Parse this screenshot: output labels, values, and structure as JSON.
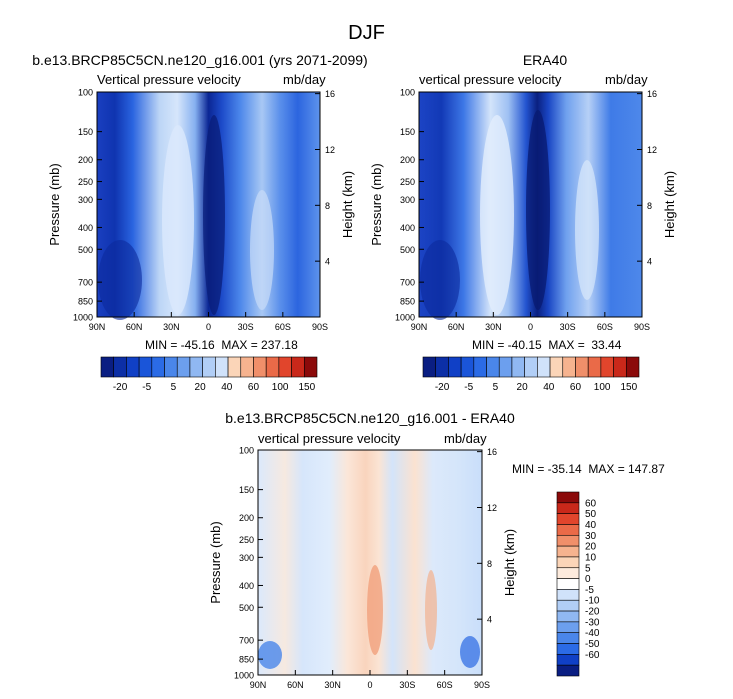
{
  "page": {
    "title": "DJF"
  },
  "colors": {
    "neg_scale_abs": [
      "#0a1e82",
      "#0c2fa6",
      "#1040c6",
      "#1a55d9",
      "#2b6be6",
      "#4a86ea",
      "#6c9fee",
      "#90b8f2",
      "#b1cef6",
      "#d0e2fa",
      "#ffeedd"
    ],
    "pos_scale_abs": [
      "#fbd5b8",
      "#f6b38f",
      "#f08f6a",
      "#ea6a48",
      "#e1452c",
      "#c9281a",
      "#8b0a0a"
    ],
    "diff_scale": [
      "#8b0a0a",
      "#c9281a",
      "#e1452c",
      "#ea6a48",
      "#f08f6a",
      "#f6b38f",
      "#fbd5b8",
      "#fdebdd",
      "#ffffff",
      "#d0e2fa",
      "#b1cef6",
      "#90b8f2",
      "#6c9fee",
      "#4a86ea",
      "#2b6be6",
      "#1040c6",
      "#0a1e82"
    ]
  },
  "chart_data": [
    {
      "type": "heatmap",
      "title": "b.e13.BRCP85C5CN.ne120_g16.001 (yrs 2071-2099)",
      "left_label": "Vertical pressure velocity",
      "right_label": "mb/day",
      "ylabel": "Pressure (mb)",
      "y2label": "Height (km)",
      "x_ticks": [
        "90N",
        "60N",
        "30N",
        "0",
        "30S",
        "60S",
        "90S"
      ],
      "y_ticks": [
        "100",
        "150",
        "200",
        "250",
        "300",
        "400",
        "500",
        "700",
        "850",
        "1000"
      ],
      "y2_ticks": [
        "16",
        "12",
        "8",
        "4"
      ],
      "min_text": "MIN = -45.16  MAX = 237.18",
      "colorbar_labels": [
        "-20",
        "-5",
        "5",
        "20",
        "40",
        "60",
        "100",
        "150"
      ]
    },
    {
      "type": "heatmap",
      "title": "ERA40",
      "left_label": "vertical pressure velocity",
      "right_label": "mb/day",
      "ylabel": "Pressure (mb)",
      "y2label": "Height (km)",
      "x_ticks": [
        "90N",
        "60N",
        "30N",
        "0",
        "30S",
        "60S",
        "90S"
      ],
      "y_ticks": [
        "100",
        "150",
        "200",
        "250",
        "300",
        "400",
        "500",
        "700",
        "850",
        "1000"
      ],
      "y2_ticks": [
        "16",
        "12",
        "8",
        "4"
      ],
      "min_text": "MIN = -40.15  MAX =  33.44",
      "colorbar_labels": [
        "-20",
        "-5",
        "5",
        "20",
        "40",
        "60",
        "100",
        "150"
      ]
    },
    {
      "type": "heatmap",
      "title": "b.e13.BRCP85C5CN.ne120_g16.001 - ERA40",
      "left_label": "vertical pressure velocity",
      "right_label": "mb/day",
      "ylabel": "Pressure (mb)",
      "y2label": "Height (km)",
      "x_ticks": [
        "90N",
        "60N",
        "30N",
        "0",
        "30S",
        "60S",
        "90S"
      ],
      "y_ticks": [
        "100",
        "150",
        "200",
        "250",
        "300",
        "400",
        "500",
        "700",
        "850",
        "1000"
      ],
      "y2_ticks": [
        "16",
        "12",
        "8",
        "4"
      ],
      "min_text": "MIN = -35.14  MAX = 147.87",
      "colorbar_labels": [
        "60",
        "50",
        "40",
        "30",
        "20",
        "10",
        "5",
        "0",
        "-5",
        "-10",
        "-20",
        "-30",
        "-40",
        "-50",
        "-60"
      ]
    }
  ]
}
